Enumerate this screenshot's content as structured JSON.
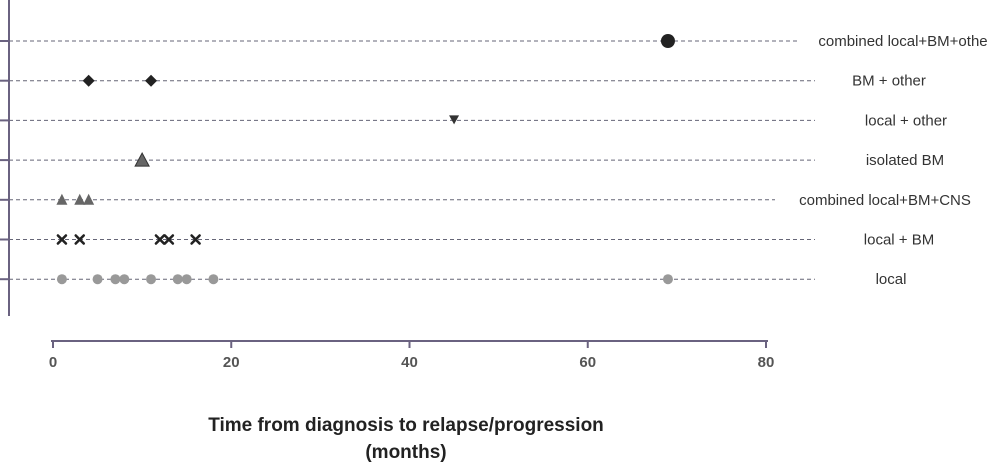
{
  "chart_data": {
    "type": "scatter",
    "xlabel_lines": [
      "Time from diagnosis to relapse/progression",
      "(months)"
    ],
    "ylabel": "",
    "xlim": [
      0,
      80
    ],
    "x_ticks": [
      "0",
      "20",
      "40",
      "60",
      "80"
    ],
    "x_tick_values": [
      0,
      20,
      40,
      60,
      80
    ],
    "grid": "horizontal dashed",
    "categories": [
      "combined local+BM+othe",
      "BM + other",
      "local + other",
      "isolated BM",
      "combined local+BM+CNS",
      "local + BM",
      "local"
    ],
    "series": [
      {
        "category": "combined local+BM+othe",
        "marker": "circle-large",
        "color": "#222222",
        "x": [
          69
        ]
      },
      {
        "category": "BM + other",
        "marker": "diamond",
        "color": "#222222",
        "x": [
          4,
          11
        ]
      },
      {
        "category": "local + other",
        "marker": "triangle-down",
        "color": "#333333",
        "x": [
          45
        ]
      },
      {
        "category": "isolated BM",
        "marker": "triangle-up-large",
        "color": "#666666",
        "x": [
          10
        ]
      },
      {
        "category": "combined local+BM+CNS",
        "marker": "triangle-up",
        "color": "#666666",
        "x": [
          1,
          3,
          4
        ]
      },
      {
        "category": "local + BM",
        "marker": "x",
        "color": "#222222",
        "x": [
          1,
          3,
          12,
          13,
          16
        ]
      },
      {
        "category": "local",
        "marker": "circle",
        "color": "#999999",
        "x": [
          1,
          5,
          7,
          8,
          11,
          14,
          15,
          18,
          69
        ]
      }
    ],
    "colors": {
      "axis": "#6a6280",
      "grid": "#666677"
    }
  }
}
